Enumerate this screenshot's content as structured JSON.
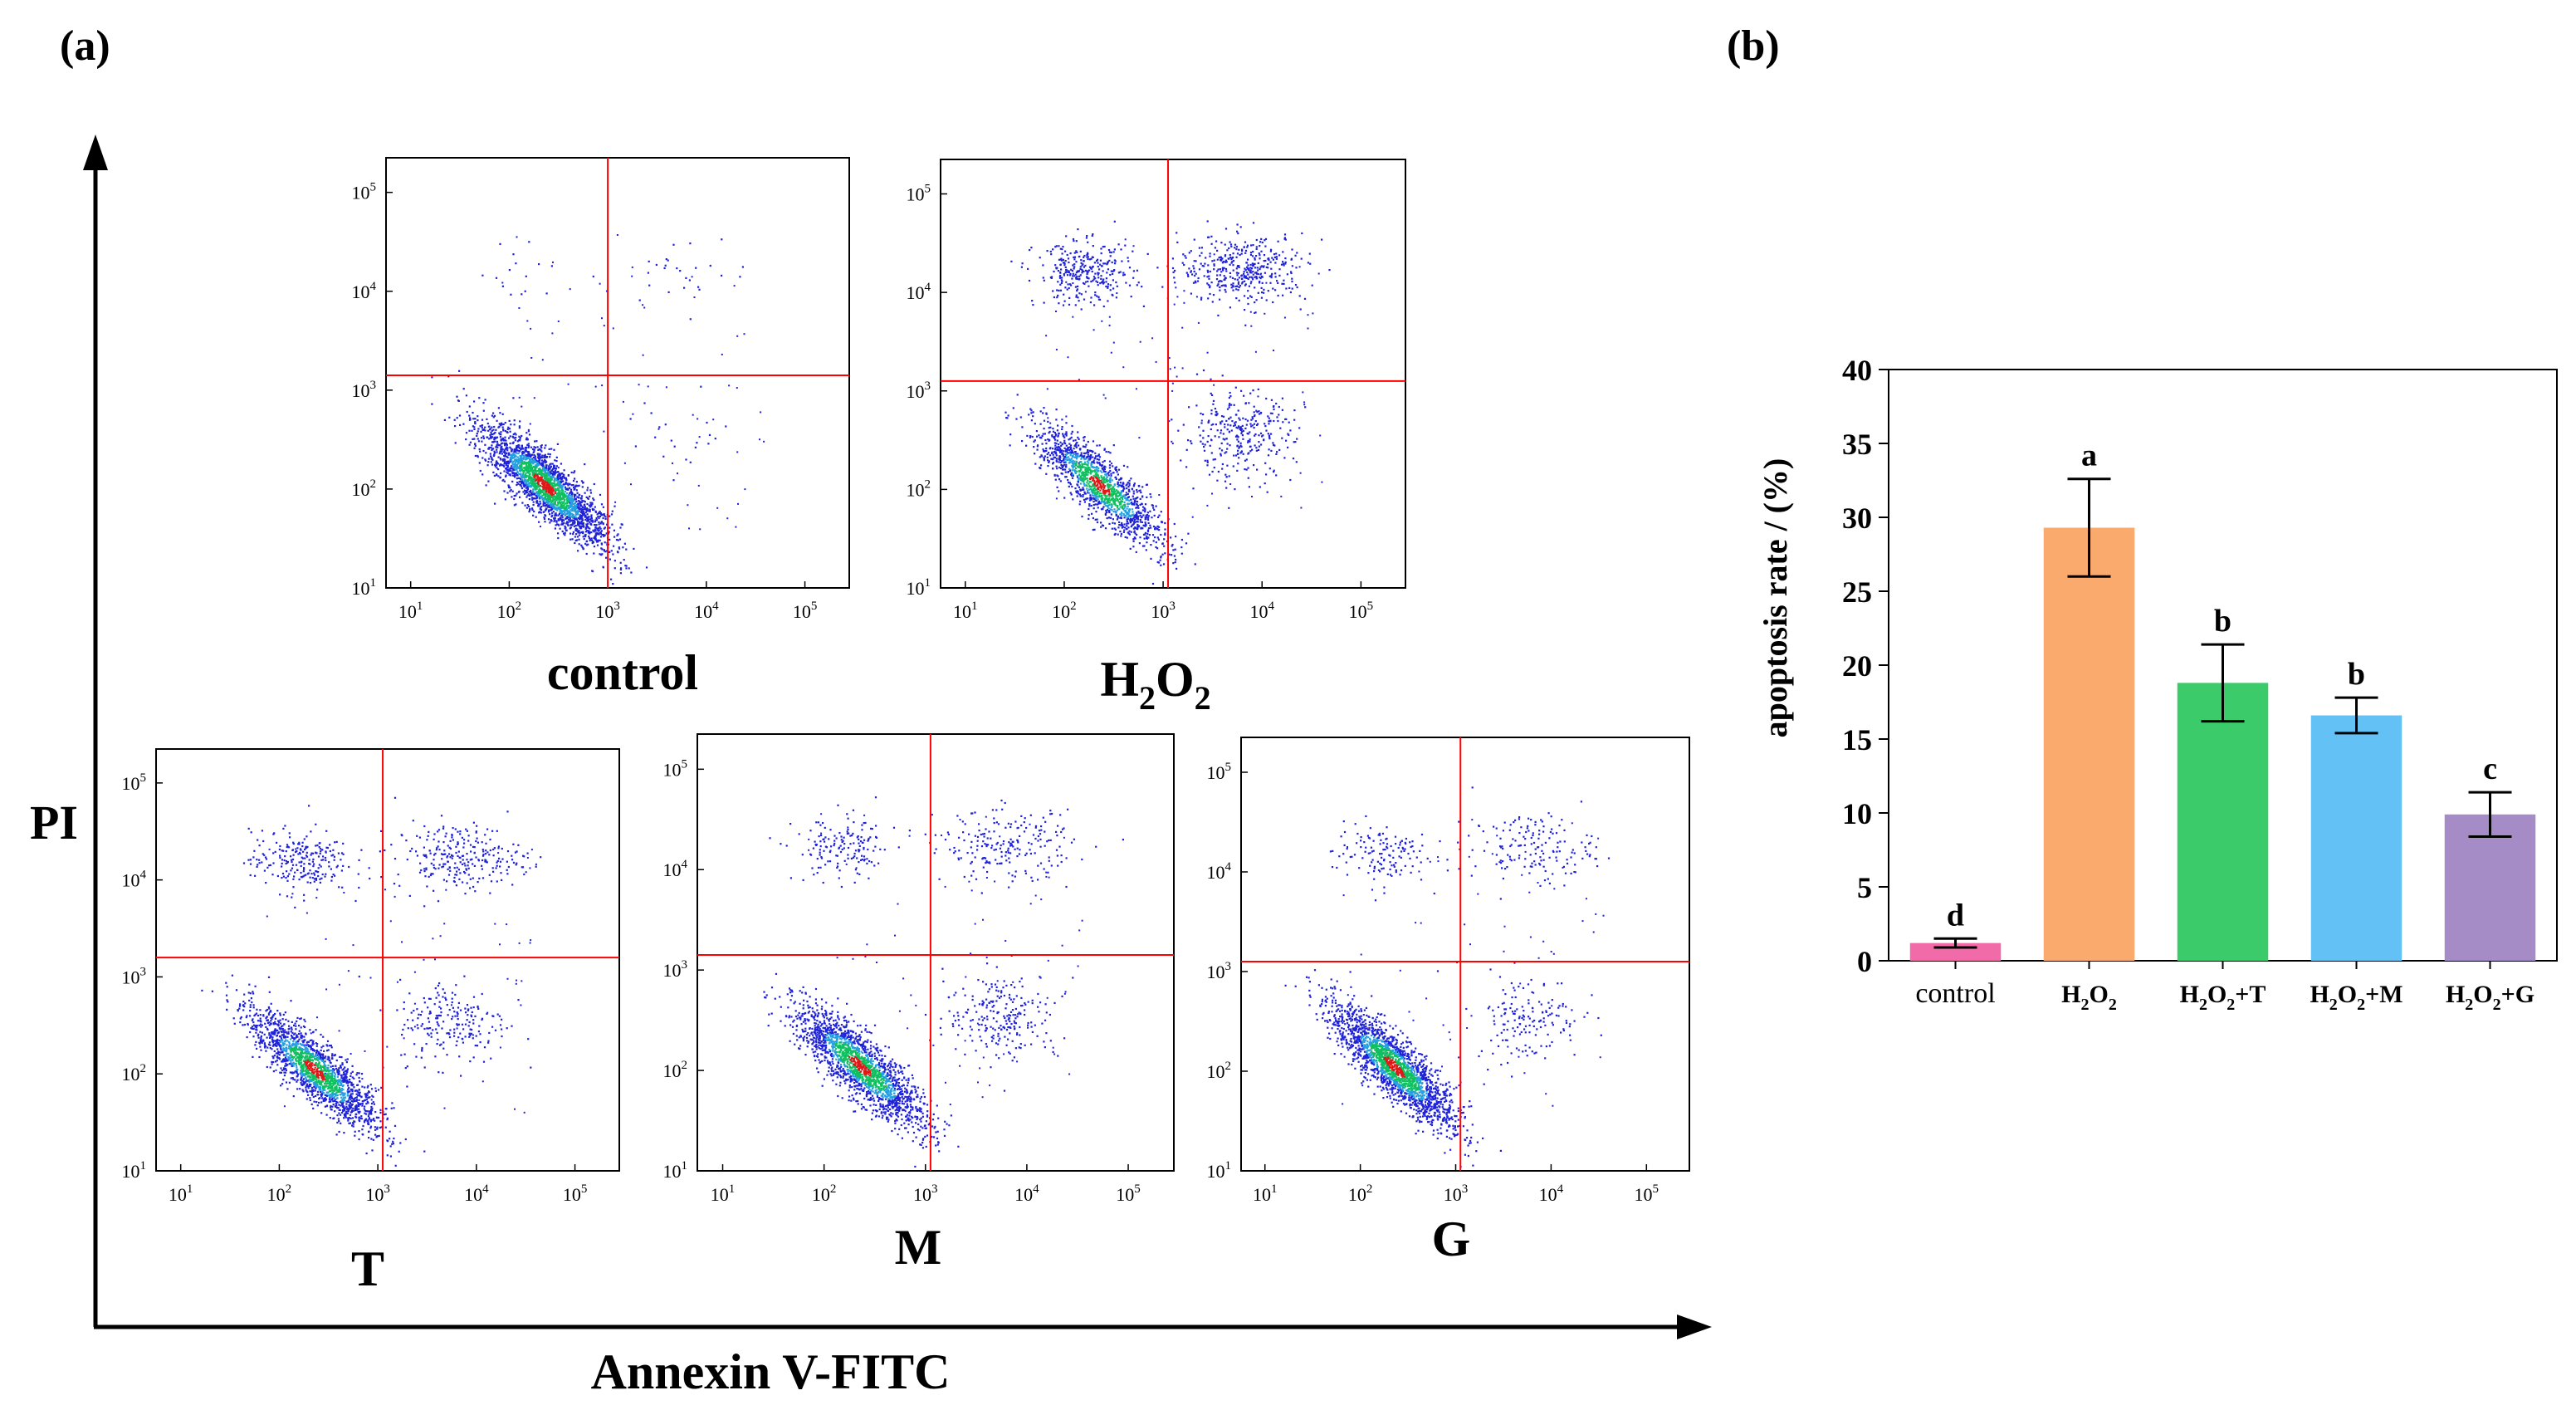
{
  "panel_a": {
    "label": "(a)",
    "y_axis_label": "PI",
    "x_axis_label": "Annexin V-FITC",
    "colors": {
      "gate": "#ff0000",
      "dots": "#1f22d8",
      "core_mid": "#10c060",
      "core_hot": "#e01818"
    },
    "tick_base": "10",
    "tick_exponents": [
      "1",
      "2",
      "3",
      "4",
      "5"
    ],
    "plots": [
      {
        "id": "control",
        "label": "control",
        "sub": null,
        "label_rest": null,
        "clusters": {
          "live": 0.93,
          "early": 0.008,
          "late_apop": 0.01,
          "necrotic": 0.006,
          "scatter": 0.03
        }
      },
      {
        "id": "h2o2",
        "label": "H",
        "sub": "2",
        "label_rest": "O",
        "sub2": "2",
        "clusters": {
          "live": 0.56,
          "early": 0.12,
          "late_apop": 0.16,
          "necrotic": 0.12,
          "scatter": 0.04
        }
      },
      {
        "id": "t",
        "label": "T",
        "sub": null,
        "label_rest": null,
        "clusters": {
          "live": 0.7,
          "early": 0.08,
          "late_apop": 0.1,
          "necrotic": 0.09,
          "scatter": 0.03
        }
      },
      {
        "id": "m",
        "label": "M",
        "sub": null,
        "label_rest": null,
        "clusters": {
          "live": 0.74,
          "early": 0.09,
          "late_apop": 0.08,
          "necrotic": 0.06,
          "scatter": 0.03
        }
      },
      {
        "id": "g",
        "label": "G",
        "sub": null,
        "label_rest": null,
        "clusters": {
          "live": 0.8,
          "early": 0.06,
          "late_apop": 0.06,
          "necrotic": 0.05,
          "scatter": 0.03
        }
      }
    ]
  },
  "panel_b": {
    "label": "(b)"
  },
  "chart_data": {
    "type": "bar",
    "title": "",
    "ylabel": "apoptosis rate / (%)",
    "xlabel": "",
    "ylim": [
      0,
      40
    ],
    "yticks": [
      0,
      5,
      10,
      15,
      20,
      25,
      30,
      35,
      40
    ],
    "categories": [
      {
        "main": "control",
        "parts": []
      },
      {
        "main": "H",
        "parts": [
          [
            "2",
            "sub"
          ],
          [
            "O",
            "n"
          ],
          [
            "2",
            "sub"
          ]
        ]
      },
      {
        "main": "H",
        "parts": [
          [
            "2",
            "sub"
          ],
          [
            "O",
            "n"
          ],
          [
            "2",
            "sub"
          ],
          [
            "+T",
            "n"
          ]
        ]
      },
      {
        "main": "H",
        "parts": [
          [
            "2",
            "sub"
          ],
          [
            "O",
            "n"
          ],
          [
            "2",
            "sub"
          ],
          [
            "+M",
            "n"
          ]
        ]
      },
      {
        "main": "H",
        "parts": [
          [
            "2",
            "sub"
          ],
          [
            "O",
            "n"
          ],
          [
            "2",
            "sub"
          ],
          [
            "+G",
            "n"
          ]
        ]
      }
    ],
    "values": [
      1.2,
      29.3,
      18.8,
      16.6,
      9.9
    ],
    "errors": [
      0.3,
      3.3,
      2.6,
      1.2,
      1.5
    ],
    "letters": [
      "d",
      "a",
      "b",
      "b",
      "c"
    ],
    "colors": [
      "#f06ba8",
      "#fbaa6e",
      "#3ccb6a",
      "#63c1f5",
      "#a58cc7"
    ]
  }
}
